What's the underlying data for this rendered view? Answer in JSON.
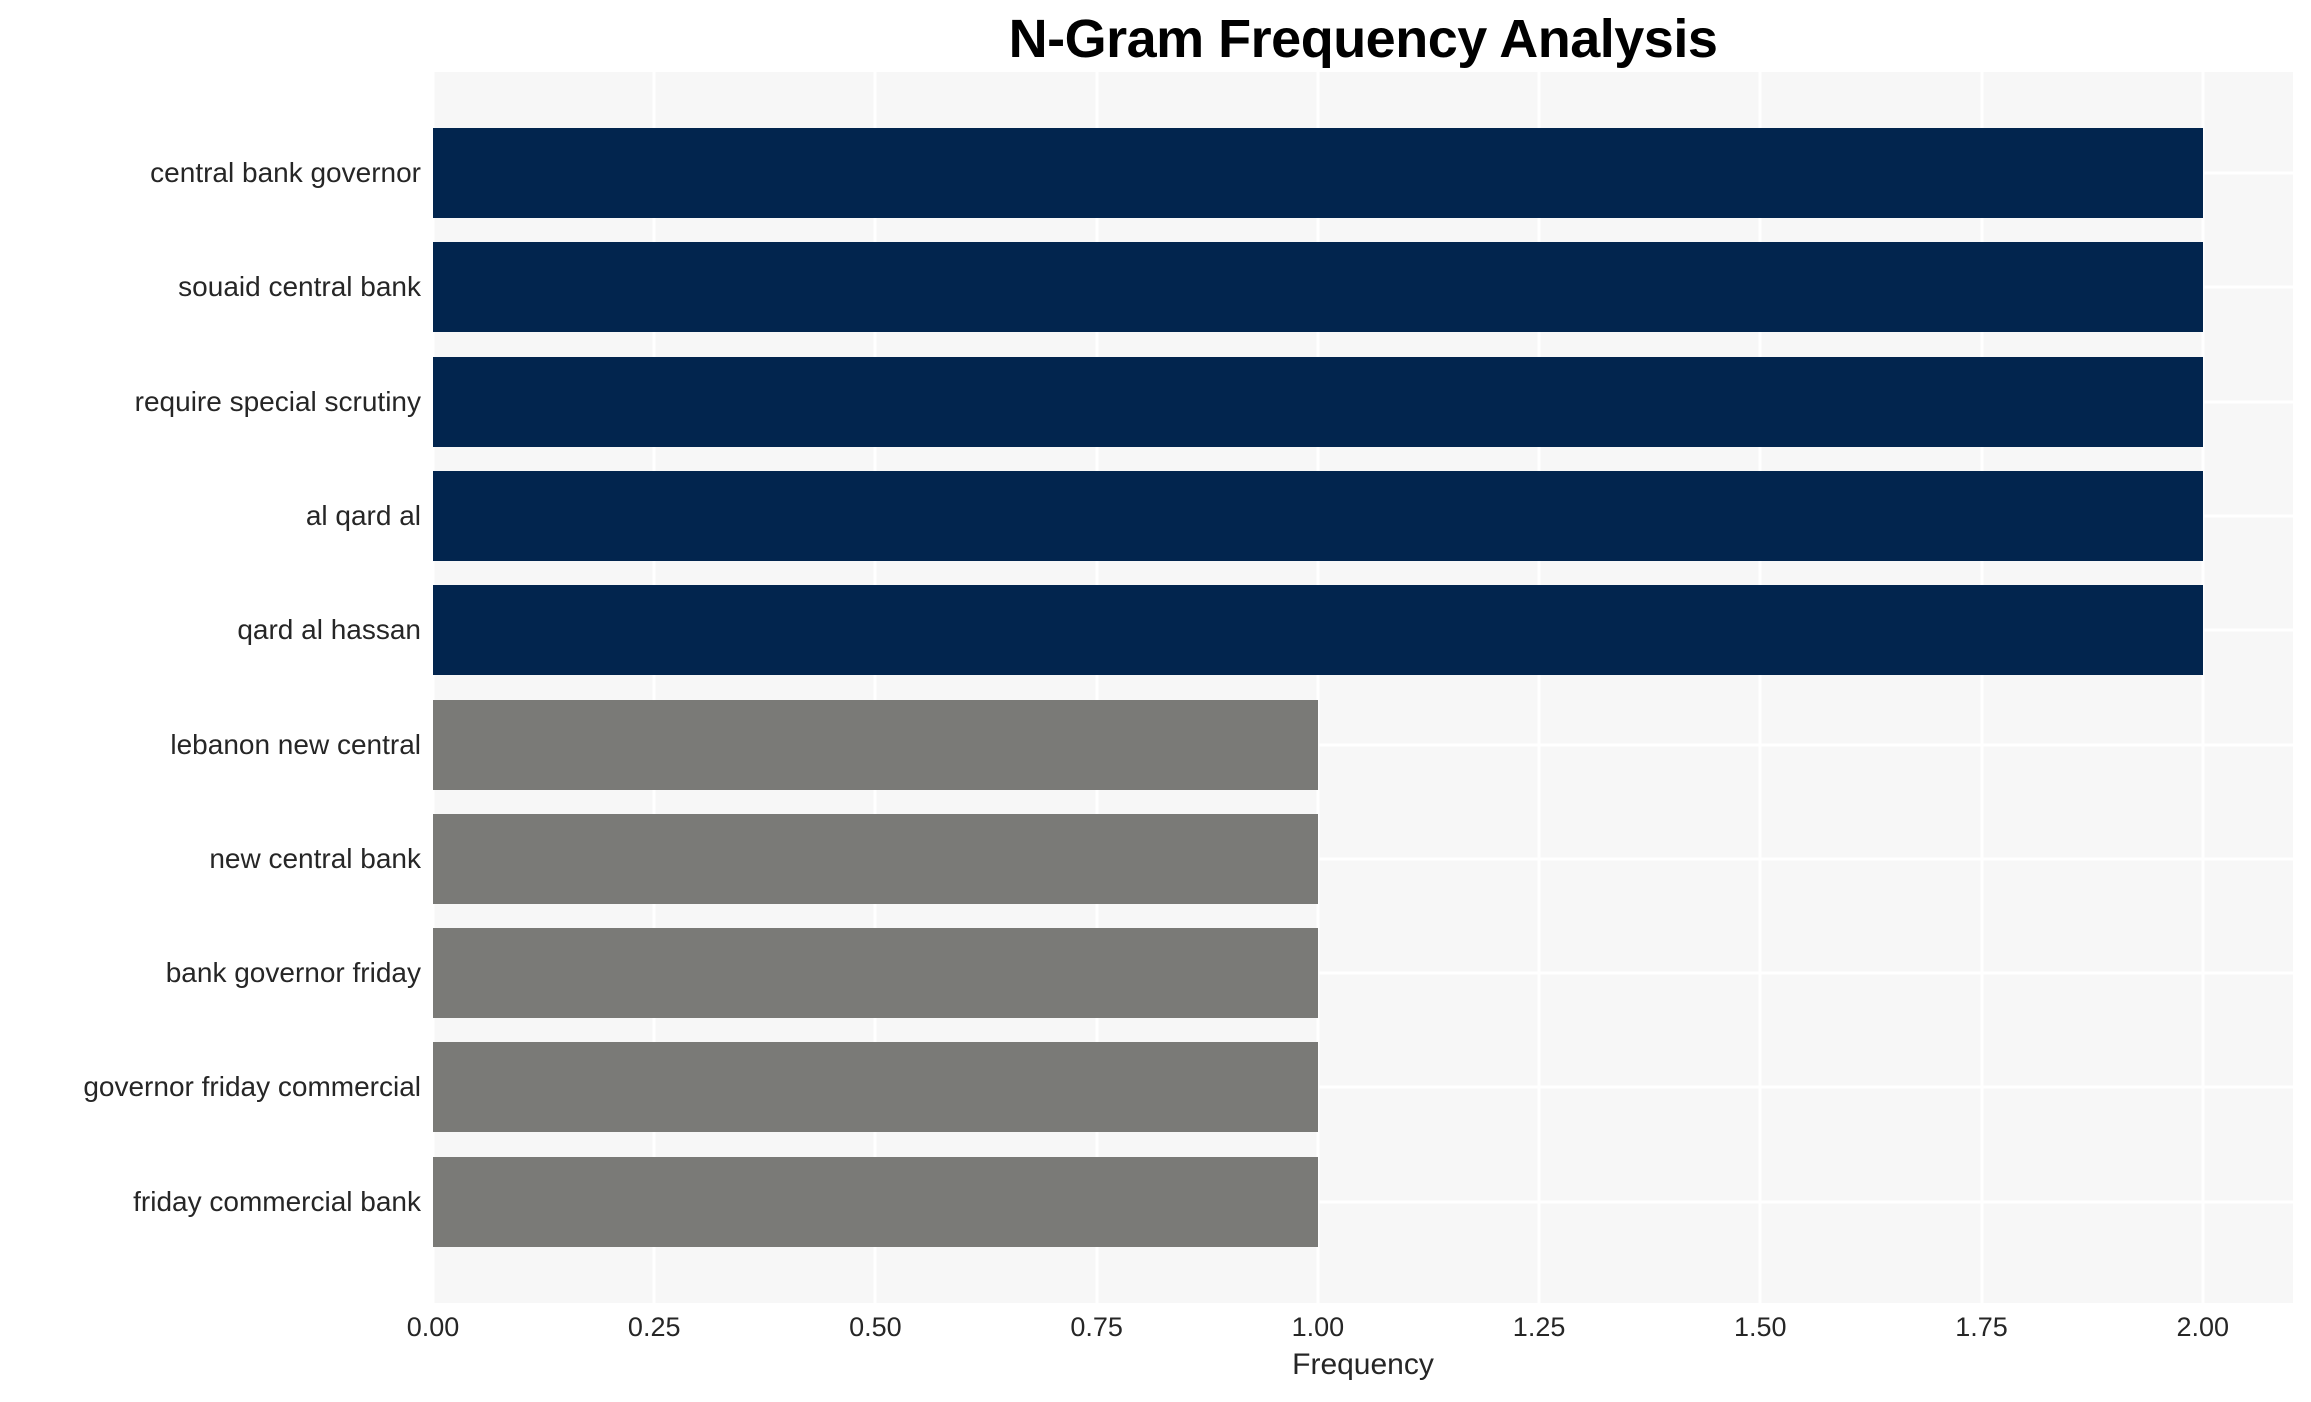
{
  "chart_data": {
    "type": "bar",
    "orientation": "horizontal",
    "title": "N-Gram Frequency Analysis",
    "xlabel": "Frequency",
    "ylabel": "",
    "categories": [
      "central bank governor",
      "souaid central bank",
      "require special scrutiny",
      "al qard al",
      "qard al hassan",
      "lebanon new central",
      "new central bank",
      "bank governor friday",
      "governor friday commercial",
      "friday commercial bank"
    ],
    "values": [
      2,
      2,
      2,
      2,
      2,
      1,
      1,
      1,
      1,
      1
    ],
    "bar_colors": [
      "#02254e",
      "#02254e",
      "#02254e",
      "#02254e",
      "#02254e",
      "#7a7a77",
      "#7a7a77",
      "#7a7a77",
      "#7a7a77",
      "#7a7a77"
    ],
    "xlim": [
      0,
      2.102
    ],
    "xticks": [
      0,
      0.25,
      0.5,
      0.75,
      1.0,
      1.25,
      1.5,
      1.75,
      2.0
    ],
    "xtick_labels": [
      "0.00",
      "0.25",
      "0.50",
      "0.75",
      "1.00",
      "1.25",
      "1.50",
      "1.75",
      "2.00"
    ],
    "grid": "both-axes white gridlines on light gray panel",
    "legend_position": "none"
  },
  "colors": {
    "bar_high": "#02254e",
    "bar_low": "#7a7a77",
    "panel_bg": "#f7f7f7",
    "grid": "#ffffff",
    "tick_text": "#262626",
    "title_text": "#000000",
    "figure_bg": "#ffffff"
  }
}
